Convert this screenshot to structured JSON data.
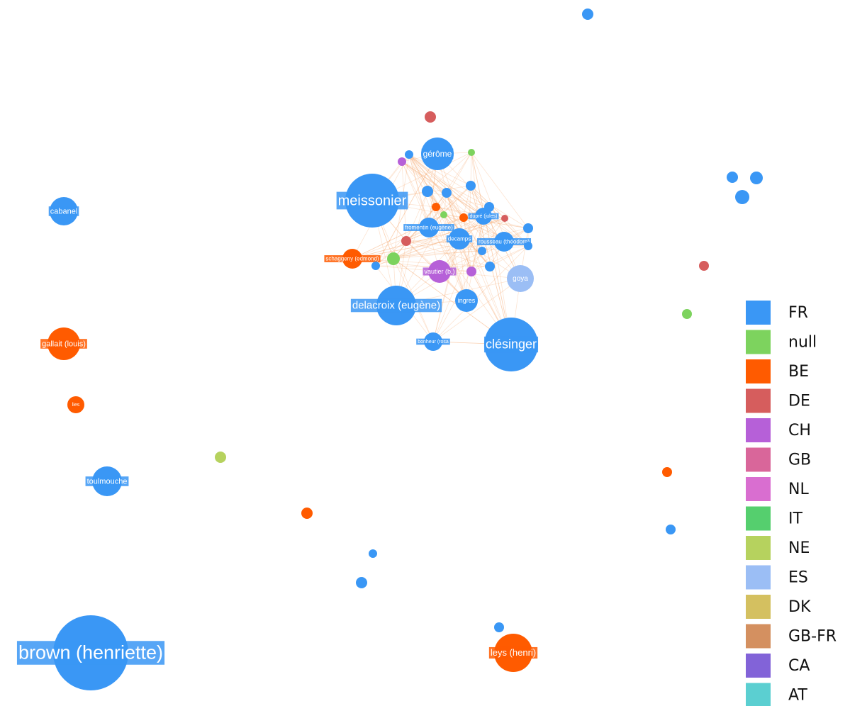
{
  "legend": [
    {
      "label": "FR",
      "color": "#3a97f5"
    },
    {
      "label": "null",
      "color": "#7dd35e"
    },
    {
      "label": "BE",
      "color": "#ff5b00"
    },
    {
      "label": "DE",
      "color": "#d65d5d"
    },
    {
      "label": "CH",
      "color": "#b660d8"
    },
    {
      "label": "GB",
      "color": "#d9669a"
    },
    {
      "label": "NL",
      "color": "#d96ed0"
    },
    {
      "label": "IT",
      "color": "#55cf6e"
    },
    {
      "label": "NE",
      "color": "#b6d25e"
    },
    {
      "label": "ES",
      "color": "#9bbef5"
    },
    {
      "label": "DK",
      "color": "#d4c060"
    },
    {
      "label": "GB-FR",
      "color": "#d49060"
    },
    {
      "label": "CA",
      "color": "#8263d8"
    },
    {
      "label": "AT",
      "color": "#5bcfd1"
    }
  ],
  "nodes": [
    {
      "label": "meissonier",
      "group": "FR"
    },
    {
      "label": "gérôme",
      "group": "FR"
    },
    {
      "label": "cabanel",
      "group": "FR"
    },
    {
      "label": "gallait (louis)",
      "group": "BE"
    },
    {
      "label": "lies",
      "group": "BE"
    },
    {
      "label": "toulmouche",
      "group": "FR"
    },
    {
      "label": "brown (henriette)",
      "group": "FR"
    },
    {
      "label": "leys (henri)",
      "group": "BE"
    },
    {
      "label": "clésinger",
      "group": "FR"
    },
    {
      "label": "delacroix (eugène)",
      "group": "FR"
    },
    {
      "label": "ingres",
      "group": "FR"
    },
    {
      "label": "goya",
      "group": "ES"
    },
    {
      "label": "vautier (b.)",
      "group": "CH"
    },
    {
      "label": "bonheur (rosa",
      "group": "FR"
    },
    {
      "label": "decamps",
      "group": "FR"
    },
    {
      "label": "fromentin (eugène)",
      "group": "FR"
    },
    {
      "label": "rousseau (théodore)",
      "group": "FR"
    },
    {
      "label": "dupré (jules)",
      "group": "FR"
    },
    {
      "label": "schaggeny (edmond)",
      "group": "BE"
    },
    {
      "group": "FR"
    },
    {
      "group": "FR"
    },
    {
      "group": "FR"
    },
    {
      "group": "FR"
    },
    {
      "group": "DE"
    },
    {
      "group": "null"
    },
    {
      "group": "BE"
    },
    {
      "group": "FR"
    },
    {
      "group": "DE"
    },
    {
      "group": "FR"
    },
    {
      "group": "BE"
    },
    {
      "group": "NE"
    },
    {
      "group": "FR"
    },
    {
      "group": "CH"
    },
    {
      "group": "FR"
    },
    {
      "group": "null"
    },
    {
      "group": "BE"
    },
    {
      "group": "DE"
    },
    {
      "group": "FR"
    },
    {
      "group": "FR"
    },
    {
      "group": "FR"
    },
    {
      "group": "FR"
    },
    {
      "group": "FR"
    },
    {
      "group": "BE"
    },
    {
      "group": "CH"
    },
    {
      "group": "null"
    },
    {
      "group": "FR"
    },
    {
      "group": "DE"
    },
    {
      "group": "FR"
    },
    {
      "group": "FR"
    },
    {
      "group": "null"
    },
    {
      "group": "FR"
    },
    {
      "group": "FR"
    }
  ]
}
